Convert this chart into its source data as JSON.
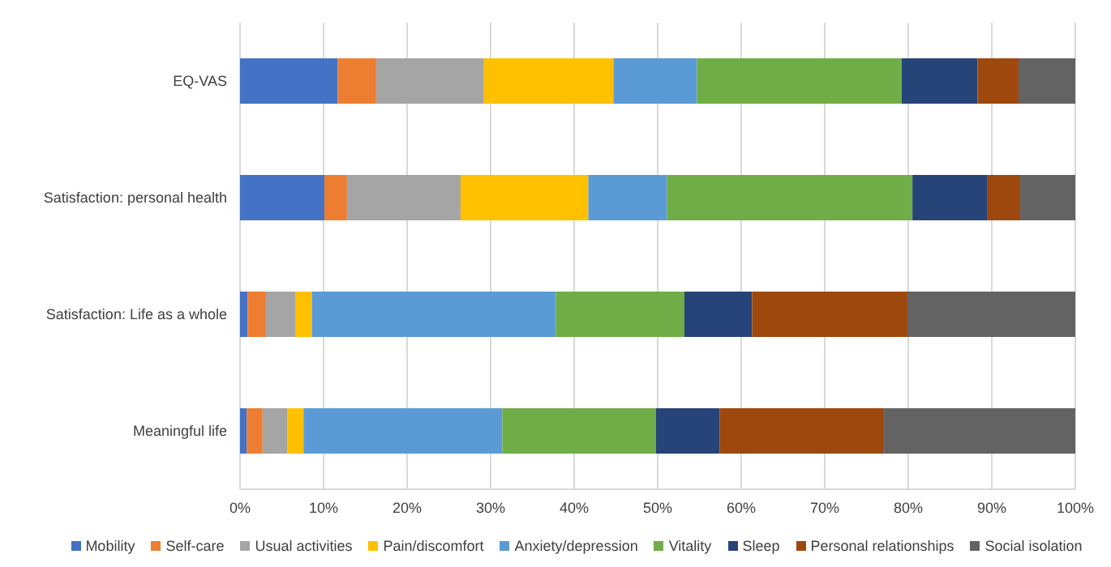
{
  "chart_data": {
    "type": "bar",
    "orientation": "horizontal",
    "stacked": true,
    "categories": [
      "EQ-VAS",
      "Satisfaction: personal health",
      "Satisfaction: Life as a whole",
      "Meaningful life"
    ],
    "series": [
      {
        "name": "Mobility",
        "color": "#4472c4",
        "values": [
          11.7,
          10.1,
          0.9,
          0.8
        ]
      },
      {
        "name": "Self-care",
        "color": "#ed7d31",
        "values": [
          4.6,
          2.7,
          2.2,
          1.9
        ]
      },
      {
        "name": "Usual activities",
        "color": "#a5a5a5",
        "values": [
          12.9,
          13.6,
          3.5,
          3.0
        ]
      },
      {
        "name": "Pain/discomfort",
        "color": "#ffc000",
        "values": [
          15.5,
          15.3,
          2.0,
          1.9
        ]
      },
      {
        "name": "Anxiety/depression",
        "color": "#5b9bd5",
        "values": [
          10.0,
          9.4,
          29.2,
          23.8
        ]
      },
      {
        "name": "Vitality",
        "color": "#70ad47",
        "values": [
          24.5,
          29.4,
          15.4,
          18.4
        ]
      },
      {
        "name": "Sleep",
        "color": "#264478",
        "values": [
          9.1,
          9.0,
          8.1,
          7.6
        ]
      },
      {
        "name": "Personal relationships",
        "color": "#9e480e",
        "values": [
          4.9,
          3.9,
          18.6,
          19.7
        ]
      },
      {
        "name": "Social isolation",
        "color": "#636363",
        "values": [
          6.8,
          6.6,
          20.1,
          22.9
        ]
      }
    ],
    "xlim": [
      0,
      100
    ],
    "xticks": [
      {
        "value": 0,
        "label": "0%"
      },
      {
        "value": 10,
        "label": "10%"
      },
      {
        "value": 20,
        "label": "20%"
      },
      {
        "value": 30,
        "label": "30%"
      },
      {
        "value": 40,
        "label": "40%"
      },
      {
        "value": 50,
        "label": "50%"
      },
      {
        "value": 60,
        "label": "60%"
      },
      {
        "value": 70,
        "label": "70%"
      },
      {
        "value": 80,
        "label": "80%"
      },
      {
        "value": 90,
        "label": "90%"
      },
      {
        "value": 100,
        "label": "100%"
      }
    ],
    "grid": "x",
    "legend": "bottom"
  }
}
